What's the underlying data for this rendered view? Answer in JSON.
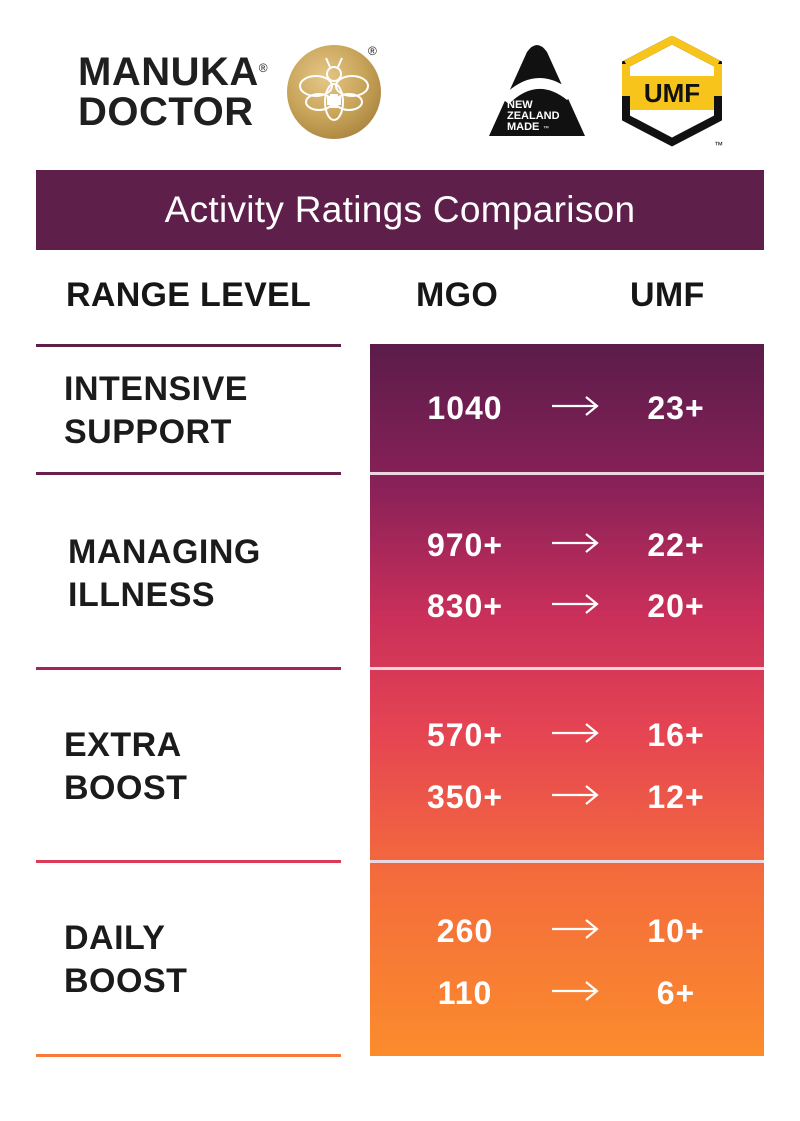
{
  "header": {
    "brand_line1": "MANUKA",
    "brand_line2": "DOCTOR",
    "registered_mark": "®",
    "nz_line1": "NEW",
    "nz_line2": "ZEALAND",
    "nz_line3": "MADE",
    "nz_tm": "™",
    "umf_text": "UMF",
    "umf_tm": "™"
  },
  "title": "Activity Ratings Comparison",
  "columns": {
    "range": "RANGE LEVEL",
    "mgo": "MGO",
    "umf": "UMF"
  },
  "levels": [
    {
      "line1": "INTENSIVE",
      "line2": "SUPPORT"
    },
    {
      "line1": "MANAGING",
      "line2": "ILLNESS"
    },
    {
      "line1": "EXTRA",
      "line2": "BOOST"
    },
    {
      "line1": "DAILY",
      "line2": "BOOST"
    }
  ],
  "rows": [
    {
      "mgo": "1040",
      "umf": "23+"
    },
    {
      "mgo": "970+",
      "umf": "22+"
    },
    {
      "mgo": "830+",
      "umf": "20+"
    },
    {
      "mgo": "570+",
      "umf": "16+"
    },
    {
      "mgo": "350+",
      "umf": "12+"
    },
    {
      "mgo": "260",
      "umf": "10+"
    },
    {
      "mgo": "110",
      "umf": "6+"
    }
  ],
  "colors": {
    "title_bg": "#5e1f4b",
    "gradient_top": "#5b1c4a",
    "gradient_bottom": "#fb8c2c",
    "umf_yellow": "#f6c41b",
    "gold": "#c8a45a"
  }
}
